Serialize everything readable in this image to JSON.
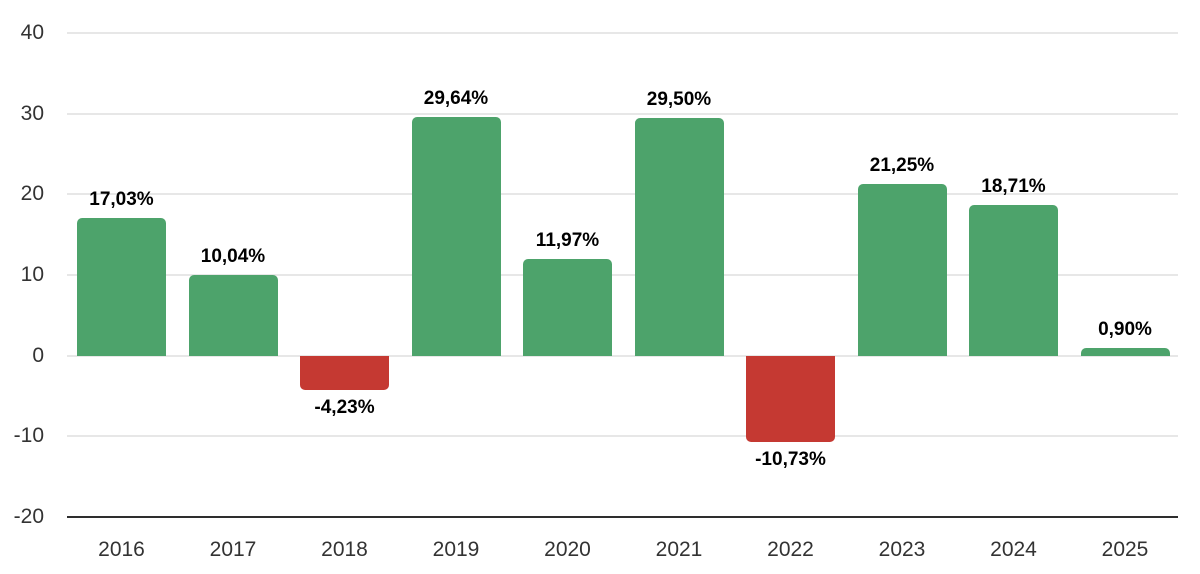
{
  "chart_data": {
    "type": "bar",
    "title": "",
    "xlabel": "",
    "ylabel": "",
    "categories": [
      "2016",
      "2017",
      "2018",
      "2019",
      "2020",
      "2021",
      "2022",
      "2023",
      "2024",
      "2025"
    ],
    "values": [
      17.03,
      10.04,
      -4.23,
      29.64,
      11.97,
      29.5,
      -10.73,
      21.25,
      18.71,
      0.9
    ],
    "value_labels": [
      "17,03%",
      "10,04%",
      "-4,23%",
      "29,64%",
      "11,97%",
      "29,50%",
      "-10,73%",
      "21,25%",
      "18,71%",
      "0,90%"
    ],
    "yticks": [
      40,
      30,
      20,
      10,
      0,
      -10,
      -20
    ],
    "ytick_labels": [
      "40",
      "30",
      "20",
      "10",
      "0",
      "-10",
      "-20"
    ],
    "ylim": [
      -20,
      40
    ],
    "grid": true,
    "legend": "none",
    "colors": {
      "positive": "#4DA36B",
      "negative": "#C53932",
      "gridline": "#E7E7E7",
      "axis_line": "#2E2E2E",
      "axis_text": "#333333",
      "value_label_text": "#000000"
    }
  }
}
